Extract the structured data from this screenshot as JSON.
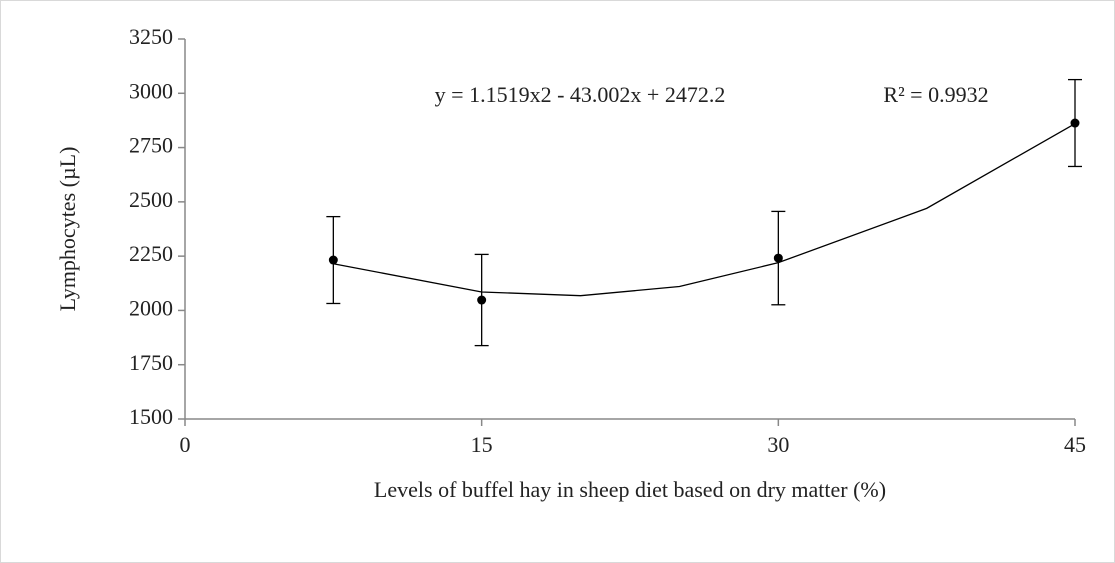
{
  "chart_data": {
    "type": "scatter",
    "x_label": "Levels of buffel hay in sheep diet based on dry matter (%)",
    "y_label": "Lymphocytes (µL)",
    "annotations": [
      "y = 1.1519x2 - 43.002x + 2472.2",
      "R² = 0.9932"
    ],
    "x": [
      7.5,
      15,
      30,
      45
    ],
    "values": [
      2232,
      2048,
      2241,
      2863
    ],
    "errors": [
      200,
      210,
      215,
      200
    ],
    "color": "#000000",
    "trendline": {
      "x": [
        7.5,
        15,
        20,
        25,
        30,
        37.5,
        45
      ],
      "values": [
        2215,
        2085,
        2068,
        2110,
        2220,
        2470,
        2860
      ]
    },
    "xlim": [
      0,
      45
    ],
    "xticks": [
      0,
      15,
      30,
      45
    ],
    "ylim": [
      1500,
      3250
    ],
    "yticks": [
      1500,
      1750,
      2000,
      2250,
      2500,
      2750,
      3000,
      3250
    ],
    "grid": false
  }
}
